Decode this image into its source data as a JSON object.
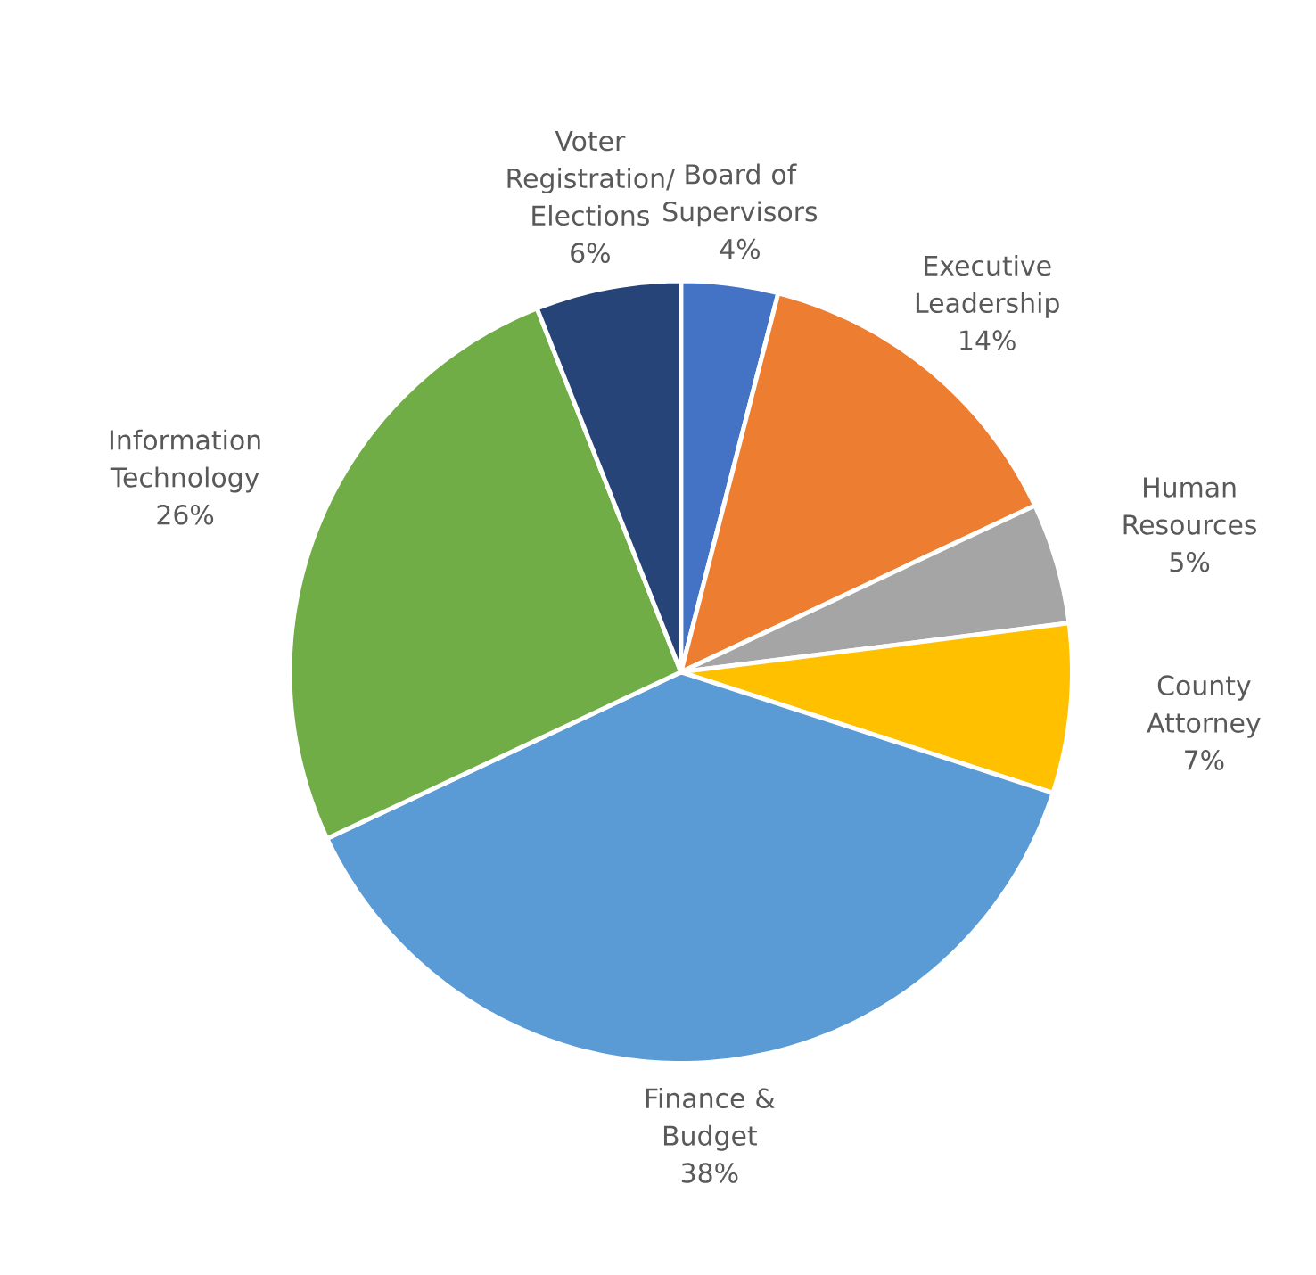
{
  "chart_data": {
    "type": "pie",
    "categories": [
      "Board of Supervisors",
      "Executive Leadership",
      "Human Resources",
      "County Attorney",
      "Finance & Budget",
      "Information Technology",
      "Voter Registration/ Elections"
    ],
    "values": [
      4,
      14,
      5,
      7,
      38,
      26,
      6
    ],
    "value_labels": [
      "4%",
      "14%",
      "5%",
      "7%",
      "38%",
      "26%",
      "6%"
    ],
    "colors": [
      "#4472c4",
      "#ed7d31",
      "#a5a5a5",
      "#ffc000",
      "#5b9bd5",
      "#70ad47",
      "#264478"
    ]
  }
}
